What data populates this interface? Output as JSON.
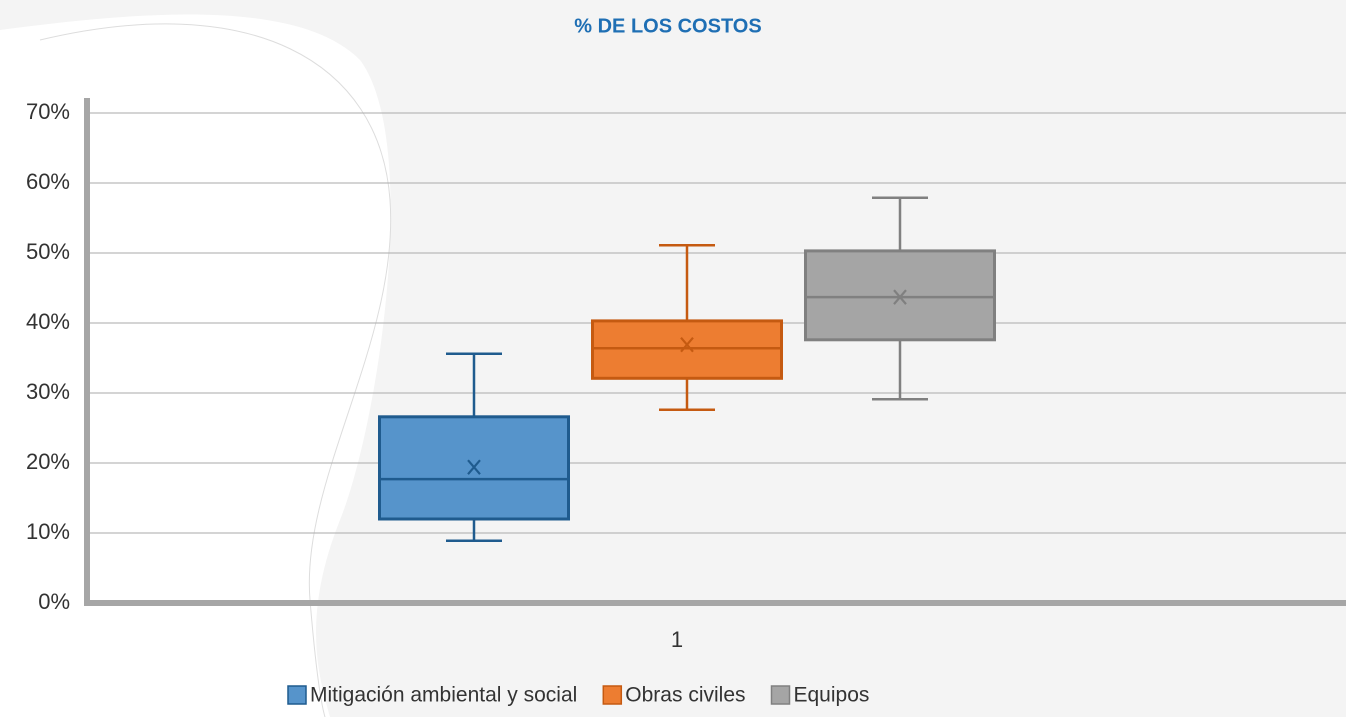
{
  "chart_data": {
    "type": "box",
    "title": "% DE LOS COSTOS",
    "categories": [
      "1"
    ],
    "ylim": [
      0,
      70
    ],
    "yticks": [
      {
        "value": 0,
        "label": "0%"
      },
      {
        "value": 10,
        "label": "10%"
      },
      {
        "value": 20,
        "label": "20%"
      },
      {
        "value": 30,
        "label": "30%"
      },
      {
        "value": 40,
        "label": "40%"
      },
      {
        "value": 50,
        "label": "50%"
      },
      {
        "value": 60,
        "label": "60%"
      },
      {
        "value": 70,
        "label": "70%"
      }
    ],
    "grid": true,
    "legend": "bottom",
    "series": [
      {
        "name": "Mitigación ambiental y social",
        "color": "#5694cb",
        "edge": "#1f5b8e",
        "min": 8.9,
        "q1": 12,
        "median": 17.7,
        "q3": 26.6,
        "max": 35.6,
        "mean": 19.4
      },
      {
        "name": "Obras civiles",
        "color": "#ed7d31",
        "edge": "#c55a11",
        "min": 27.6,
        "q1": 32.1,
        "median": 36.4,
        "q3": 40.3,
        "max": 51.1,
        "mean": 36.9
      },
      {
        "name": "Equipos",
        "color": "#a5a5a5",
        "edge": "#808080",
        "min": 29.1,
        "q1": 37.6,
        "median": 43.7,
        "q3": 50.3,
        "max": 57.9,
        "mean": 43.7
      }
    ]
  }
}
